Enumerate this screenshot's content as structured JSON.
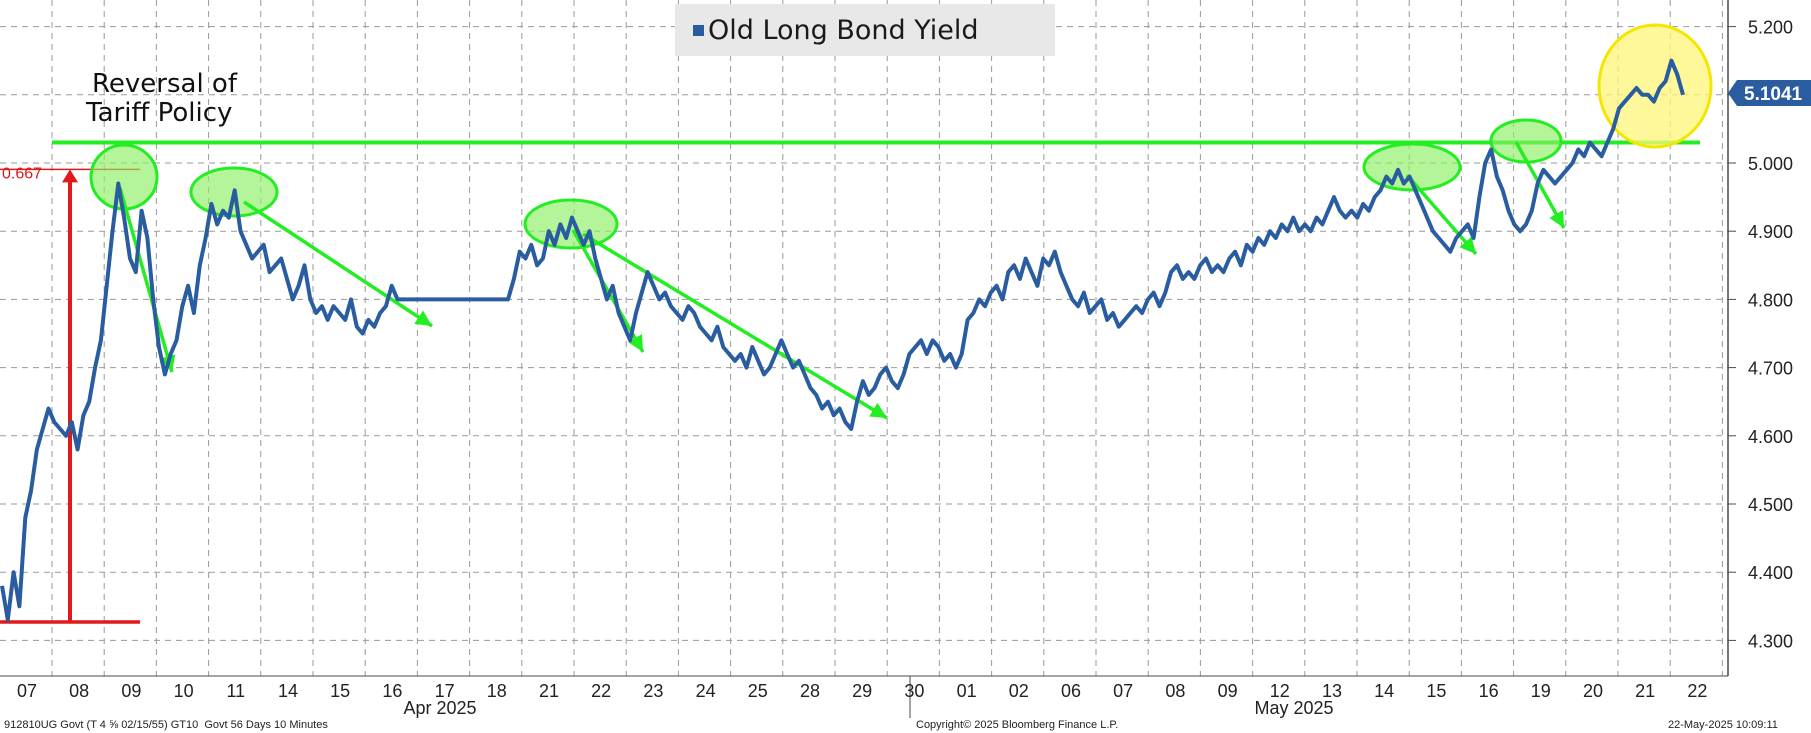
{
  "chart_data": {
    "type": "line",
    "title": "Old Long Bond Yield",
    "series": [
      {
        "name": "Old Long Bond Yield",
        "color": "#2a5d9f",
        "last_value": "5.1041"
      }
    ],
    "y_ticks": [
      "5.200",
      "5.100",
      "5.000",
      "4.900",
      "4.800",
      "4.700",
      "4.600",
      "4.500",
      "4.400",
      "4.300"
    ],
    "ylim": [
      4.24,
      5.25
    ],
    "x_ticks": [
      "07",
      "08",
      "09",
      "10",
      "11",
      "14",
      "15",
      "16",
      "17",
      "18",
      "21",
      "22",
      "23",
      "24",
      "25",
      "28",
      "29",
      "30",
      "01",
      "02",
      "06",
      "07",
      "08",
      "09",
      "12",
      "13",
      "14",
      "15",
      "16",
      "19",
      "20",
      "21",
      "22"
    ],
    "months": [
      "Apr 2025",
      "May 2025"
    ],
    "annotations": {
      "reversal": [
        "Reversal of",
        "Tariff Policy"
      ],
      "range_label": "0.667",
      "resistance_level": 5.03,
      "range_low": 4.327,
      "range_high": 4.995
    },
    "points": [
      [
        0,
        4.38
      ],
      [
        0.3,
        4.33
      ],
      [
        0.6,
        4.4
      ],
      [
        0.9,
        4.35
      ],
      [
        1.2,
        4.48
      ],
      [
        1.5,
        4.52
      ],
      [
        1.8,
        4.58
      ],
      [
        2.1,
        4.61
      ],
      [
        2.4,
        4.64
      ],
      [
        2.7,
        4.62
      ],
      [
        3.0,
        4.61
      ],
      [
        3.3,
        4.6
      ],
      [
        3.6,
        4.62
      ],
      [
        3.9,
        4.58
      ],
      [
        4.2,
        4.63
      ],
      [
        4.5,
        4.65
      ],
      [
        4.8,
        4.7
      ],
      [
        5.1,
        4.74
      ],
      [
        5.4,
        4.82
      ],
      [
        5.7,
        4.9
      ],
      [
        6.0,
        4.97
      ],
      [
        6.3,
        4.92
      ],
      [
        6.6,
        4.86
      ],
      [
        6.9,
        4.84
      ],
      [
        7.2,
        4.93
      ],
      [
        7.5,
        4.89
      ],
      [
        7.8,
        4.8
      ],
      [
        8.1,
        4.73
      ],
      [
        8.4,
        4.69
      ],
      [
        8.7,
        4.72
      ],
      [
        9.0,
        4.74
      ],
      [
        9.3,
        4.79
      ],
      [
        9.6,
        4.82
      ],
      [
        9.9,
        4.78
      ],
      [
        10.2,
        4.85
      ],
      [
        10.5,
        4.89
      ],
      [
        10.8,
        4.94
      ],
      [
        11.1,
        4.91
      ],
      [
        11.4,
        4.93
      ],
      [
        11.7,
        4.92
      ],
      [
        12.0,
        4.96
      ],
      [
        12.3,
        4.9
      ],
      [
        12.6,
        4.88
      ],
      [
        12.9,
        4.86
      ],
      [
        13.2,
        4.87
      ],
      [
        13.5,
        4.88
      ],
      [
        13.8,
        4.84
      ],
      [
        14.1,
        4.85
      ],
      [
        14.4,
        4.86
      ],
      [
        14.7,
        4.83
      ],
      [
        15.0,
        4.8
      ],
      [
        15.3,
        4.82
      ],
      [
        15.6,
        4.85
      ],
      [
        15.9,
        4.8
      ],
      [
        16.2,
        4.78
      ],
      [
        16.5,
        4.79
      ],
      [
        16.8,
        4.77
      ],
      [
        17.1,
        4.79
      ],
      [
        17.4,
        4.78
      ],
      [
        17.7,
        4.77
      ],
      [
        18.0,
        4.8
      ],
      [
        18.3,
        4.76
      ],
      [
        18.6,
        4.75
      ],
      [
        18.9,
        4.77
      ],
      [
        19.2,
        4.76
      ],
      [
        19.5,
        4.78
      ],
      [
        19.8,
        4.79
      ],
      [
        20.1,
        4.82
      ],
      [
        20.4,
        4.8
      ],
      [
        20.7,
        4.8
      ],
      [
        21.0,
        4.8
      ],
      [
        21.3,
        4.8
      ],
      [
        21.6,
        4.8
      ],
      [
        21.9,
        4.8
      ],
      [
        22.2,
        4.8
      ],
      [
        22.5,
        4.8
      ],
      [
        22.8,
        4.8
      ],
      [
        23.1,
        4.8
      ],
      [
        23.4,
        4.8
      ],
      [
        23.7,
        4.8
      ],
      [
        24.0,
        4.8
      ],
      [
        24.3,
        4.8
      ],
      [
        24.6,
        4.8
      ],
      [
        24.9,
        4.8
      ],
      [
        25.2,
        4.8
      ],
      [
        25.5,
        4.8
      ],
      [
        25.8,
        4.8
      ],
      [
        26.1,
        4.8
      ],
      [
        26.4,
        4.83
      ],
      [
        26.7,
        4.87
      ],
      [
        27.0,
        4.86
      ],
      [
        27.3,
        4.88
      ],
      [
        27.6,
        4.85
      ],
      [
        27.9,
        4.86
      ],
      [
        28.2,
        4.9
      ],
      [
        28.5,
        4.88
      ],
      [
        28.8,
        4.91
      ],
      [
        29.1,
        4.89
      ],
      [
        29.4,
        4.92
      ],
      [
        29.7,
        4.9
      ],
      [
        30.0,
        4.88
      ],
      [
        30.3,
        4.9
      ],
      [
        30.6,
        4.86
      ],
      [
        30.9,
        4.83
      ],
      [
        31.2,
        4.8
      ],
      [
        31.5,
        4.82
      ],
      [
        31.8,
        4.78
      ],
      [
        32.1,
        4.76
      ],
      [
        32.4,
        4.74
      ],
      [
        32.7,
        4.78
      ],
      [
        33.0,
        4.81
      ],
      [
        33.3,
        4.84
      ],
      [
        33.6,
        4.82
      ],
      [
        33.9,
        4.8
      ],
      [
        34.2,
        4.81
      ],
      [
        34.5,
        4.79
      ],
      [
        34.8,
        4.78
      ],
      [
        35.1,
        4.77
      ],
      [
        35.4,
        4.79
      ],
      [
        35.7,
        4.78
      ],
      [
        36.0,
        4.76
      ],
      [
        36.3,
        4.75
      ],
      [
        36.6,
        4.74
      ],
      [
        36.9,
        4.76
      ],
      [
        37.2,
        4.73
      ],
      [
        37.5,
        4.72
      ],
      [
        37.8,
        4.71
      ],
      [
        38.1,
        4.72
      ],
      [
        38.4,
        4.7
      ],
      [
        38.7,
        4.73
      ],
      [
        39.0,
        4.71
      ],
      [
        39.3,
        4.69
      ],
      [
        39.6,
        4.7
      ],
      [
        39.9,
        4.72
      ],
      [
        40.2,
        4.74
      ],
      [
        40.5,
        4.72
      ],
      [
        40.8,
        4.7
      ],
      [
        41.1,
        4.71
      ],
      [
        41.4,
        4.69
      ],
      [
        41.7,
        4.67
      ],
      [
        42.0,
        4.66
      ],
      [
        42.3,
        4.64
      ],
      [
        42.6,
        4.65
      ],
      [
        42.9,
        4.63
      ],
      [
        43.2,
        4.64
      ],
      [
        43.5,
        4.62
      ],
      [
        43.8,
        4.61
      ],
      [
        44.1,
        4.65
      ],
      [
        44.4,
        4.68
      ],
      [
        44.7,
        4.66
      ],
      [
        45.0,
        4.67
      ],
      [
        45.3,
        4.69
      ],
      [
        45.6,
        4.7
      ],
      [
        45.9,
        4.68
      ],
      [
        46.2,
        4.67
      ],
      [
        46.5,
        4.69
      ],
      [
        46.8,
        4.72
      ],
      [
        47.1,
        4.73
      ],
      [
        47.4,
        4.74
      ],
      [
        47.7,
        4.72
      ],
      [
        48.0,
        4.74
      ],
      [
        48.3,
        4.73
      ],
      [
        48.6,
        4.71
      ],
      [
        48.9,
        4.72
      ],
      [
        49.2,
        4.7
      ],
      [
        49.5,
        4.72
      ],
      [
        49.8,
        4.77
      ],
      [
        50.1,
        4.78
      ],
      [
        50.4,
        4.8
      ],
      [
        50.7,
        4.79
      ],
      [
        51.0,
        4.81
      ],
      [
        51.3,
        4.82
      ],
      [
        51.6,
        4.8
      ],
      [
        51.9,
        4.84
      ],
      [
        52.2,
        4.85
      ],
      [
        52.5,
        4.83
      ],
      [
        52.8,
        4.86
      ],
      [
        53.1,
        4.84
      ],
      [
        53.4,
        4.82
      ],
      [
        53.7,
        4.86
      ],
      [
        54.0,
        4.85
      ],
      [
        54.3,
        4.87
      ],
      [
        54.6,
        4.84
      ],
      [
        54.9,
        4.82
      ],
      [
        55.2,
        4.8
      ],
      [
        55.5,
        4.79
      ],
      [
        55.8,
        4.81
      ],
      [
        56.1,
        4.78
      ],
      [
        56.4,
        4.79
      ],
      [
        56.7,
        4.8
      ],
      [
        57.0,
        4.77
      ],
      [
        57.3,
        4.78
      ],
      [
        57.6,
        4.76
      ],
      [
        57.9,
        4.77
      ],
      [
        58.2,
        4.78
      ],
      [
        58.5,
        4.79
      ],
      [
        58.8,
        4.78
      ],
      [
        59.1,
        4.8
      ],
      [
        59.4,
        4.81
      ],
      [
        59.7,
        4.79
      ],
      [
        60.0,
        4.81
      ],
      [
        60.3,
        4.84
      ],
      [
        60.6,
        4.85
      ],
      [
        60.9,
        4.83
      ],
      [
        61.2,
        4.84
      ],
      [
        61.5,
        4.83
      ],
      [
        61.8,
        4.85
      ],
      [
        62.1,
        4.86
      ],
      [
        62.4,
        4.84
      ],
      [
        62.7,
        4.85
      ],
      [
        63.0,
        4.84
      ],
      [
        63.3,
        4.86
      ],
      [
        63.6,
        4.87
      ],
      [
        63.9,
        4.85
      ],
      [
        64.2,
        4.88
      ],
      [
        64.5,
        4.87
      ],
      [
        64.8,
        4.89
      ],
      [
        65.1,
        4.88
      ],
      [
        65.4,
        4.9
      ],
      [
        65.7,
        4.89
      ],
      [
        66.0,
        4.91
      ],
      [
        66.3,
        4.9
      ],
      [
        66.6,
        4.92
      ],
      [
        66.9,
        4.9
      ],
      [
        67.2,
        4.91
      ],
      [
        67.5,
        4.9
      ],
      [
        67.8,
        4.92
      ],
      [
        68.1,
        4.91
      ],
      [
        68.4,
        4.93
      ],
      [
        68.7,
        4.95
      ],
      [
        69.0,
        4.93
      ],
      [
        69.3,
        4.92
      ],
      [
        69.6,
        4.93
      ],
      [
        69.9,
        4.92
      ],
      [
        70.2,
        4.94
      ],
      [
        70.5,
        4.93
      ],
      [
        70.8,
        4.95
      ],
      [
        71.1,
        4.96
      ],
      [
        71.4,
        4.98
      ],
      [
        71.7,
        4.97
      ],
      [
        72.0,
        4.99
      ],
      [
        72.3,
        4.97
      ],
      [
        72.6,
        4.98
      ],
      [
        72.9,
        4.96
      ],
      [
        73.2,
        4.94
      ],
      [
        73.5,
        4.92
      ],
      [
        73.8,
        4.9
      ],
      [
        74.1,
        4.89
      ],
      [
        74.4,
        4.88
      ],
      [
        74.7,
        4.87
      ],
      [
        75.0,
        4.89
      ],
      [
        75.3,
        4.9
      ],
      [
        75.6,
        4.91
      ],
      [
        75.9,
        4.89
      ],
      [
        76.2,
        4.95
      ],
      [
        76.5,
        5.0
      ],
      [
        76.8,
        5.02
      ],
      [
        77.1,
        4.98
      ],
      [
        77.4,
        4.96
      ],
      [
        77.7,
        4.93
      ],
      [
        78.0,
        4.91
      ],
      [
        78.3,
        4.9
      ],
      [
        78.6,
        4.91
      ],
      [
        78.9,
        4.93
      ],
      [
        79.2,
        4.97
      ],
      [
        79.5,
        4.99
      ],
      [
        79.8,
        4.98
      ],
      [
        80.1,
        4.97
      ],
      [
        80.4,
        4.98
      ],
      [
        80.7,
        4.99
      ],
      [
        81.0,
        5.0
      ],
      [
        81.3,
        5.02
      ],
      [
        81.6,
        5.01
      ],
      [
        81.9,
        5.03
      ],
      [
        82.2,
        5.02
      ],
      [
        82.5,
        5.01
      ],
      [
        82.8,
        5.03
      ],
      [
        83.1,
        5.05
      ],
      [
        83.4,
        5.08
      ],
      [
        83.7,
        5.09
      ],
      [
        84.0,
        5.1
      ],
      [
        84.3,
        5.11
      ],
      [
        84.6,
        5.1
      ],
      [
        84.9,
        5.1
      ],
      [
        85.2,
        5.09
      ],
      [
        85.5,
        5.11
      ],
      [
        85.8,
        5.12
      ],
      [
        86.1,
        5.15
      ],
      [
        86.4,
        5.13
      ],
      [
        86.7,
        5.1
      ]
    ]
  }
}
